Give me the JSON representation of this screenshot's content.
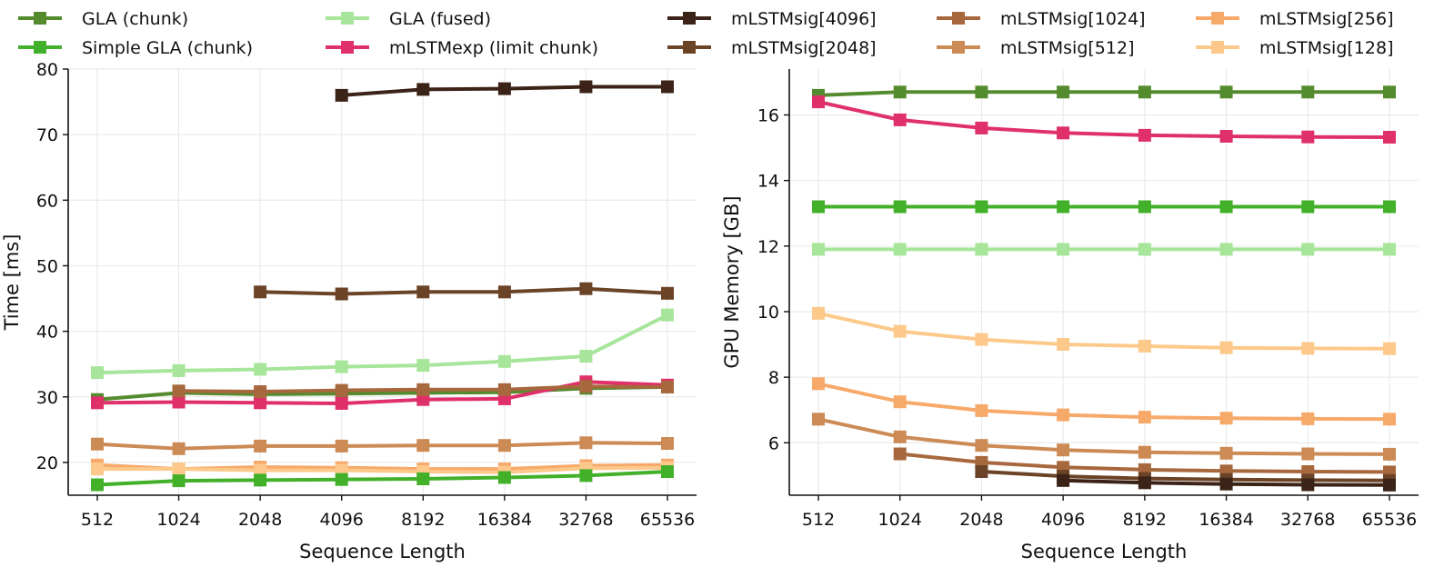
{
  "legend": [
    {
      "name": "GLA (chunk)",
      "color": "#558b2f"
    },
    {
      "name": "Simple GLA (chunk)",
      "color": "#43b02a"
    },
    {
      "name": "GLA (fused)",
      "color": "#a6e59a"
    },
    {
      "name": "mLSTMexp (limit chunk)",
      "color": "#e0306a"
    },
    {
      "name": "mLSTMsig[4096]",
      "color": "#3b2317"
    },
    {
      "name": "mLSTMsig[2048]",
      "color": "#6b4327"
    },
    {
      "name": "mLSTMsig[1024]",
      "color": "#a8683e"
    },
    {
      "name": "mLSTMsig[512]",
      "color": "#cc8a55"
    },
    {
      "name": "mLSTMsig[256]",
      "color": "#f7a96a"
    },
    {
      "name": "mLSTMsig[128]",
      "color": "#fcc98b"
    }
  ],
  "chart_data": [
    {
      "type": "line",
      "title": "",
      "xlabel": "Sequence Length",
      "ylabel": "Time [ms]",
      "categories": [
        "512",
        "1024",
        "2048",
        "4096",
        "8192",
        "16384",
        "32768",
        "65536"
      ],
      "ylim": [
        15,
        80
      ],
      "yticks": [
        20,
        30,
        40,
        50,
        60,
        70,
        80
      ],
      "grid": true,
      "series": [
        {
          "name": "GLA (fused)",
          "values": [
            33.7,
            34.0,
            34.2,
            34.6,
            34.8,
            35.4,
            36.2,
            42.5
          ]
        },
        {
          "name": "GLA (chunk)",
          "values": [
            29.6,
            30.6,
            30.4,
            30.5,
            30.6,
            30.7,
            31.3,
            31.5
          ]
        },
        {
          "name": "mLSTMexp (limit chunk)",
          "values": [
            29.1,
            29.2,
            29.1,
            29.0,
            29.6,
            29.7,
            32.3,
            31.8
          ]
        },
        {
          "name": "mLSTMsig[4096]",
          "values": [
            null,
            null,
            null,
            76.0,
            76.9,
            77.0,
            77.3,
            77.3
          ]
        },
        {
          "name": "mLSTMsig[2048]",
          "values": [
            null,
            null,
            46.0,
            45.7,
            46.0,
            46.0,
            46.5,
            45.8
          ]
        },
        {
          "name": "mLSTMsig[1024]",
          "values": [
            null,
            30.9,
            30.8,
            31.0,
            31.1,
            31.1,
            31.6,
            31.5
          ]
        },
        {
          "name": "mLSTMsig[512]",
          "values": [
            22.8,
            22.1,
            22.5,
            22.5,
            22.6,
            22.6,
            23.0,
            22.9
          ]
        },
        {
          "name": "mLSTMsig[256]",
          "values": [
            19.6,
            19.0,
            19.3,
            19.2,
            19.0,
            19.0,
            19.5,
            19.6
          ]
        },
        {
          "name": "mLSTMsig[128]",
          "values": [
            19.0,
            19.0,
            18.8,
            18.8,
            18.6,
            18.5,
            19.1,
            19.2
          ]
        },
        {
          "name": "Simple GLA (chunk)",
          "values": [
            16.6,
            17.2,
            17.3,
            17.4,
            17.5,
            17.7,
            18.0,
            18.6
          ]
        }
      ]
    },
    {
      "type": "line",
      "title": "",
      "xlabel": "Sequence Length",
      "ylabel": "GPU Memory [GB]",
      "categories": [
        "512",
        "1024",
        "2048",
        "4096",
        "8192",
        "16384",
        "32768",
        "65536"
      ],
      "ylim": [
        4.4,
        17.4
      ],
      "yticks": [
        6,
        8,
        10,
        12,
        14,
        16
      ],
      "grid": true,
      "series": [
        {
          "name": "GLA (chunk)",
          "values": [
            16.6,
            16.7,
            16.7,
            16.7,
            16.7,
            16.7,
            16.7,
            16.7
          ]
        },
        {
          "name": "mLSTMexp (limit chunk)",
          "values": [
            16.4,
            15.85,
            15.6,
            15.45,
            15.38,
            15.35,
            15.33,
            15.32
          ]
        },
        {
          "name": "Simple GLA (chunk)",
          "values": [
            13.2,
            13.2,
            13.2,
            13.2,
            13.2,
            13.2,
            13.2,
            13.2
          ]
        },
        {
          "name": "GLA (fused)",
          "values": [
            11.9,
            11.9,
            11.9,
            11.9,
            11.9,
            11.9,
            11.9,
            11.9
          ]
        },
        {
          "name": "mLSTMsig[128]",
          "values": [
            9.95,
            9.4,
            9.15,
            9.0,
            8.95,
            8.9,
            8.88,
            8.87
          ]
        },
        {
          "name": "mLSTMsig[256]",
          "values": [
            7.8,
            7.25,
            6.98,
            6.85,
            6.78,
            6.75,
            6.73,
            6.72
          ]
        },
        {
          "name": "mLSTMsig[512]",
          "values": [
            6.72,
            6.18,
            5.92,
            5.78,
            5.71,
            5.68,
            5.66,
            5.65
          ]
        },
        {
          "name": "mLSTMsig[1024]",
          "values": [
            null,
            5.66,
            5.4,
            5.25,
            5.18,
            5.14,
            5.12,
            5.11
          ]
        },
        {
          "name": "mLSTMsig[2048]",
          "values": [
            null,
            null,
            5.12,
            4.98,
            4.91,
            4.88,
            4.86,
            4.85
          ]
        },
        {
          "name": "mLSTMsig[4096]",
          "values": [
            null,
            null,
            null,
            4.85,
            4.78,
            4.74,
            4.72,
            4.71
          ]
        }
      ]
    }
  ]
}
